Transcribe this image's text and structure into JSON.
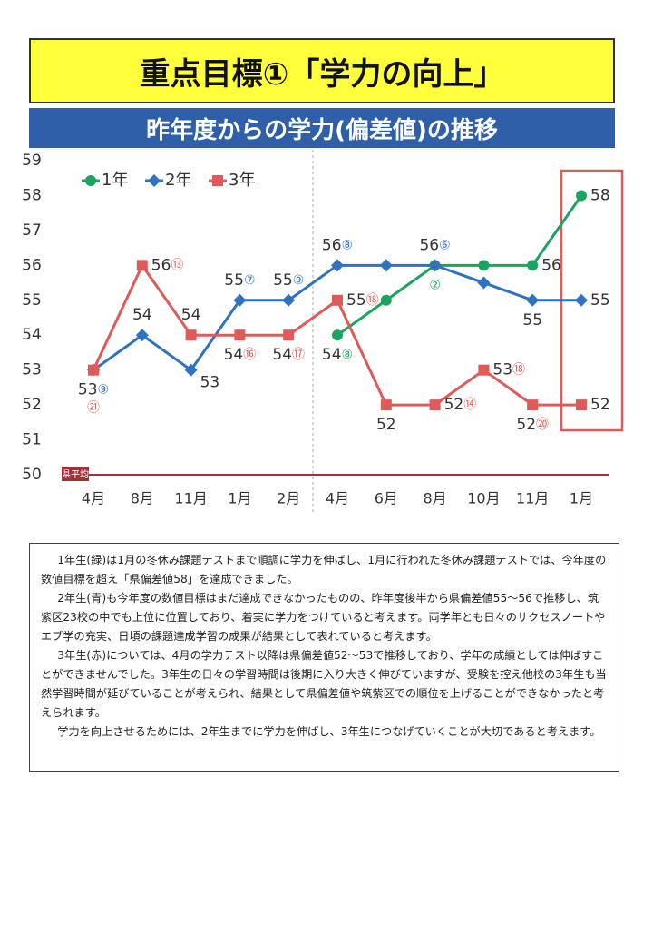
{
  "header": {
    "title": "重点目標①「学力の向上」"
  },
  "banner": {
    "title": "昨年度からの学力(偏差値)の推移"
  },
  "chart_data": {
    "type": "line",
    "categories": [
      "4月",
      "8月",
      "11月",
      "1月",
      "2月",
      "4月",
      "6月",
      "8月",
      "10月",
      "11月",
      "1月"
    ],
    "ylim": [
      50,
      59
    ],
    "yticks": [
      50,
      51,
      52,
      53,
      54,
      55,
      56,
      57,
      58,
      59
    ],
    "annotation": "県平均",
    "legend": "top-left",
    "series": [
      {
        "name": "1年",
        "color": "#1aa55e",
        "marker": "circle",
        "values": [
          null,
          null,
          null,
          null,
          null,
          54,
          55,
          56,
          56,
          56,
          58
        ],
        "value_labels": [
          null,
          null,
          null,
          null,
          null,
          "54",
          null,
          null,
          null,
          "56",
          "58"
        ],
        "ranks": [
          null,
          null,
          null,
          null,
          null,
          "⑧",
          null,
          "②",
          null,
          null,
          null
        ]
      },
      {
        "name": "2年",
        "color": "#2f73c0",
        "marker": "diamond",
        "values": [
          53,
          54,
          53,
          55,
          55,
          56,
          56,
          56,
          55.5,
          55,
          55
        ],
        "value_labels": [
          "53",
          "54",
          "53",
          "55",
          "55",
          "56",
          null,
          "56",
          null,
          "55",
          "55"
        ],
        "ranks": [
          "⑨",
          null,
          null,
          "⑦",
          "⑨",
          "⑧",
          null,
          "⑥",
          null,
          null,
          null
        ]
      },
      {
        "name": "3年",
        "color": "#e05a5a",
        "marker": "square",
        "values": [
          53,
          56,
          54,
          54,
          54,
          55,
          52,
          52,
          53,
          52,
          52
        ],
        "value_labels": [
          null,
          "56",
          "54",
          "54",
          "54",
          "55",
          "52",
          "52",
          "53",
          "52",
          "52"
        ],
        "ranks": [
          "㉑",
          "⑬",
          null,
          "⑯",
          "⑰",
          "⑱",
          null,
          "⑭",
          "⑱",
          "⑳",
          null
        ]
      }
    ]
  },
  "text": {
    "paragraphs": [
      "1年生(緑)は1月の冬休み課題テストまで順調に学力を伸ばし、1月に行われた冬休み課題テストでは、今年度の数値目標を超え「県偏差値58」を達成できました。",
      "2年生(青)も今年度の数値目標はまだ達成できなかったものの、昨年度後半から県偏差値55〜56で推移し、筑紫区23校の中でも上位に位置しており、着実に学力をつけていると考えます。両学年とも日々のサクセスノートやエブ学の充実、日頃の課題達成学習の成果が結果として表れていると考えます。",
      "3年生(赤)については、4月の学力テスト以降は県偏差値52〜53で推移しており、学年の成績としては伸ばすことができませんでした。3年生の日々の学習時間は後期に入り大きく伸びていますが、受験を控え他校の3年生も当然学習時間が延びていることが考えられ、結果として県偏差値や筑紫区での順位を上げることができなかったと考えられます。",
      "学力を向上させるためには、2年生までに学力を伸ばし、3年生につなげていくことが大切であると考えます。"
    ]
  }
}
